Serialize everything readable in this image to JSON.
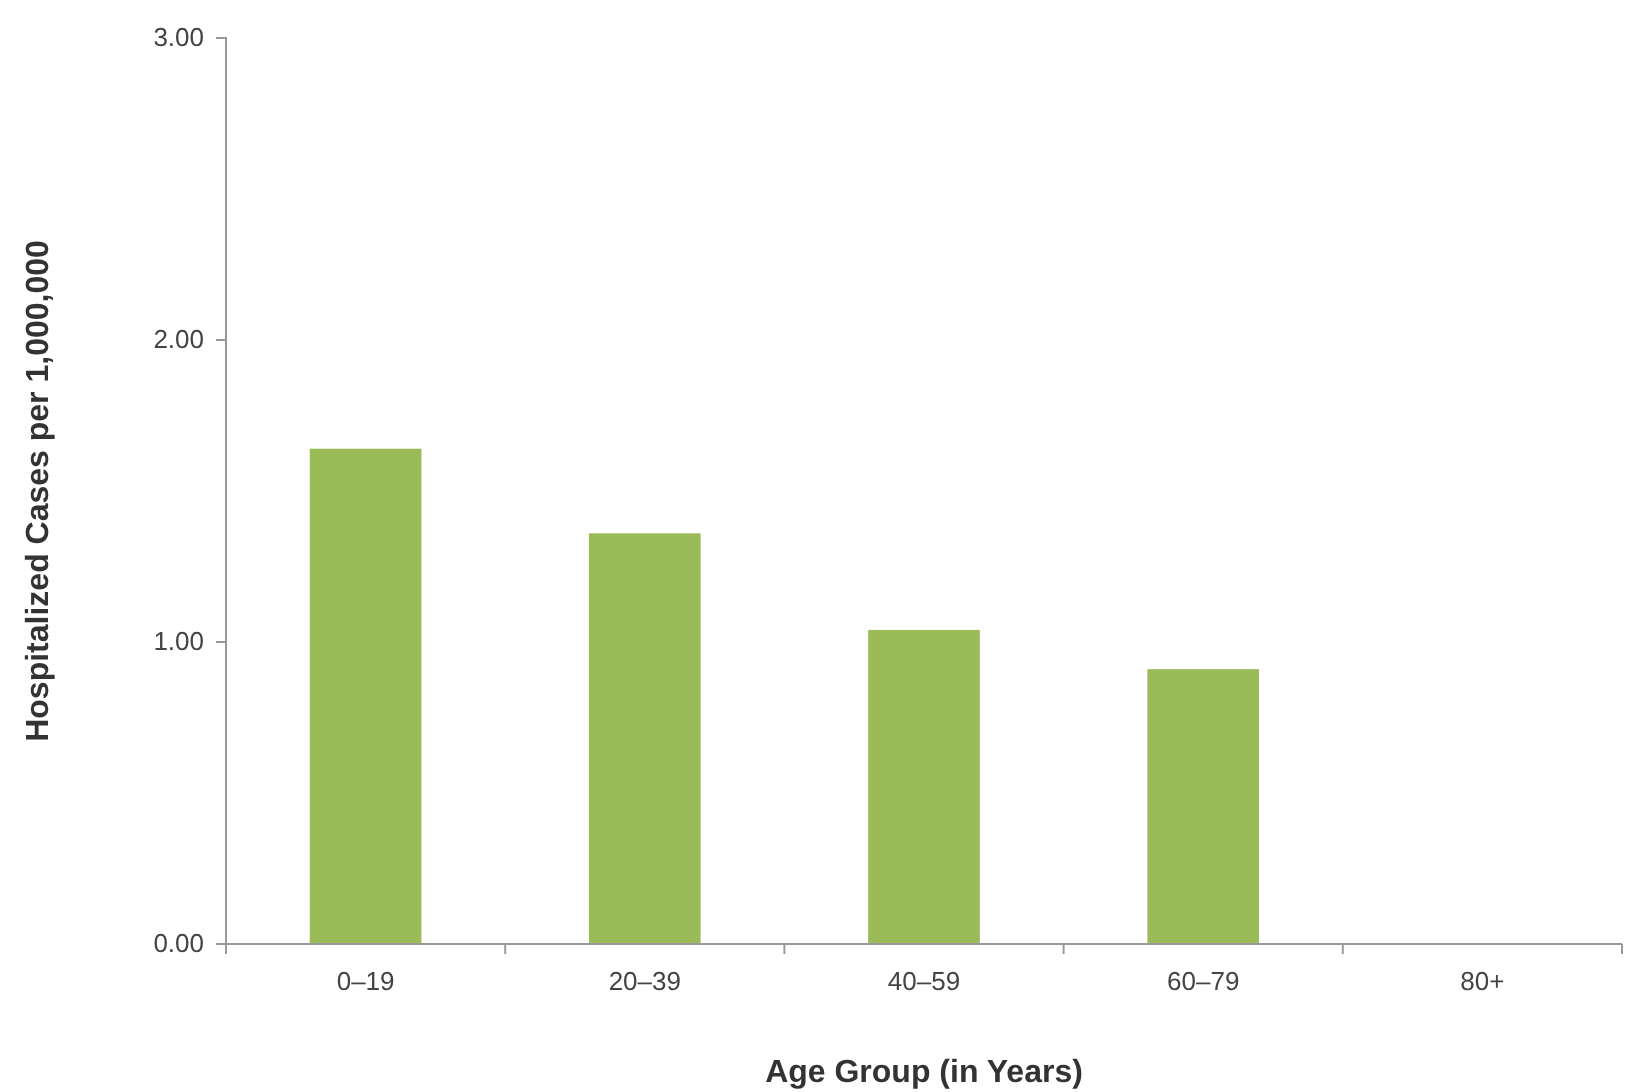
{
  "chart_data": {
    "type": "bar",
    "xlabel": "Age Group (in Years)",
    "ylabel": "Hospitalized Cases per 1,000,000",
    "categories": [
      "0–19",
      "20–39",
      "40–59",
      "60–79",
      "80+"
    ],
    "values": [
      1.64,
      1.36,
      1.04,
      0.91,
      0
    ],
    "color": "#9bbb59",
    "ylim": [
      0,
      3
    ],
    "yticks": [
      {
        "value": 0,
        "label": "0.00"
      },
      {
        "value": 1,
        "label": "1.00"
      },
      {
        "value": 2,
        "label": "2.00"
      },
      {
        "value": 3,
        "label": "3.00"
      }
    ],
    "grid": false
  }
}
